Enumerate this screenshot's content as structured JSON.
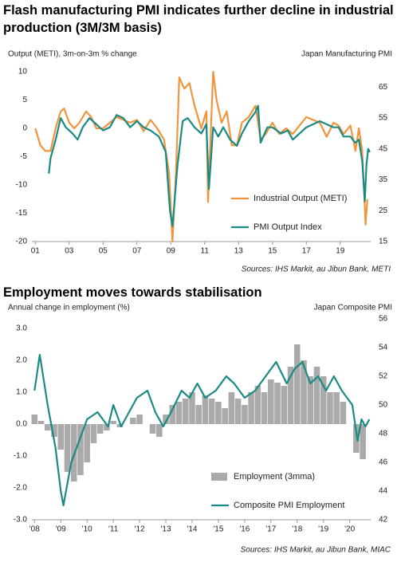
{
  "chart_data": [
    {
      "type": "line",
      "title": "Flash manufacturing PMI indicates further decline in industrial production (3M/3M basis)",
      "y_label": "Output (METI), 3m-on-3m % change",
      "y2_label": "Japan Manufacturing PMI",
      "source": "Sources: IHS Markit, au Jibun Bank, METI",
      "xlim": [
        2000.8,
        2020.8
      ],
      "xticks": [
        {
          "value": 2001,
          "label": "01"
        },
        {
          "value": 2003,
          "label": "03"
        },
        {
          "value": 2005,
          "label": "05"
        },
        {
          "value": 2007,
          "label": "07"
        },
        {
          "value": 2009,
          "label": "09"
        },
        {
          "value": 2011,
          "label": "11"
        },
        {
          "value": 2013,
          "label": "13"
        },
        {
          "value": 2015,
          "label": "15"
        },
        {
          "value": 2017,
          "label": "17"
        },
        {
          "value": 2019,
          "label": "19"
        }
      ],
      "ylim": [
        -20,
        10
      ],
      "yticks": [
        -20,
        -15,
        -10,
        -5,
        0,
        5,
        10
      ],
      "y2lim": [
        15,
        70
      ],
      "y2ticks": [
        15,
        25,
        35,
        45,
        55,
        65
      ],
      "legend": "lower right",
      "series": [
        {
          "name": "Industrial Output (METI)",
          "color": "#f0953c",
          "type": "line",
          "x": [
            2001.0,
            2001.3,
            2001.6,
            2001.9,
            2002.2,
            2002.5,
            2002.7,
            2003.0,
            2003.3,
            2003.6,
            2004.0,
            2004.3,
            2004.6,
            2005.0,
            2005.4,
            2005.8,
            2006.2,
            2006.6,
            2007.0,
            2007.4,
            2007.8,
            2008.2,
            2008.6,
            2008.9,
            2009.1,
            2009.3,
            2009.5,
            2009.8,
            2010.1,
            2010.4,
            2010.8,
            2011.1,
            2011.2,
            2011.5,
            2011.7,
            2012.0,
            2012.3,
            2012.6,
            2012.9,
            2013.2,
            2013.6,
            2014.0,
            2014.3,
            2014.6,
            2015.0,
            2015.4,
            2015.8,
            2016.2,
            2016.6,
            2017.0,
            2017.4,
            2017.8,
            2018.2,
            2018.6,
            2018.9,
            2019.2,
            2019.6,
            2019.9,
            2020.1,
            2020.3,
            2020.5,
            2020.6
          ],
          "values": [
            0,
            -3,
            -4,
            -4,
            0,
            3,
            3.5,
            1,
            0,
            1,
            3,
            2,
            0,
            0,
            1,
            2,
            1.5,
            1,
            1.5,
            -0.5,
            1.5,
            0,
            -2,
            -8,
            -20,
            -8,
            9,
            7,
            8,
            4,
            0,
            3,
            -13,
            10,
            5,
            1,
            3,
            -3,
            -3,
            1,
            2,
            4,
            -2,
            -1,
            1,
            -1,
            0,
            -1,
            0.5,
            2,
            1.5,
            1,
            -1.5,
            1,
            0.5,
            -1,
            0.5,
            -4,
            0,
            -4,
            -17,
            -12.5
          ]
        },
        {
          "name": "PMI Output Index",
          "color": "#1a8a84",
          "type": "line",
          "axis": "y2",
          "x": [
            2001.8,
            2001.9,
            2002.2,
            2002.5,
            2002.8,
            2003.2,
            2003.5,
            2003.8,
            2004.2,
            2004.6,
            2005.0,
            2005.4,
            2005.8,
            2006.2,
            2006.6,
            2007.0,
            2007.4,
            2007.8,
            2008.3,
            2008.7,
            2008.95,
            2009.1,
            2009.4,
            2009.7,
            2010.0,
            2010.4,
            2010.8,
            2011.1,
            2011.25,
            2011.5,
            2011.8,
            2012.1,
            2012.5,
            2012.9,
            2013.2,
            2013.6,
            2014.0,
            2014.15,
            2014.3,
            2014.7,
            2015.0,
            2015.5,
            2015.9,
            2016.2,
            2016.6,
            2017.0,
            2017.4,
            2017.8,
            2018.2,
            2018.6,
            2018.9,
            2019.2,
            2019.6,
            2019.9,
            2020.1,
            2020.3,
            2020.45,
            2020.55,
            2020.65,
            2020.75
          ],
          "values": [
            37,
            42,
            48,
            55,
            52,
            50,
            48,
            52,
            55,
            53,
            51,
            52,
            56,
            55,
            52,
            54,
            52,
            51,
            49,
            44,
            25,
            20,
            40,
            54,
            55,
            52,
            50,
            53,
            32,
            52,
            49,
            52,
            48,
            46,
            50,
            54,
            57,
            59,
            47,
            52,
            52,
            50,
            51,
            48,
            50,
            52,
            53,
            54,
            53,
            52,
            52,
            49,
            49,
            47,
            48,
            41,
            28,
            40,
            45,
            44
          ]
        }
      ]
    },
    {
      "type": "combo",
      "title": "Employment moves towards stabilisation",
      "y_label": "Annual change in employment  (%)",
      "y2_label": "Japan Composite PMI",
      "source": "Sources: IHS Markit, au Jibun Bank, MIAC",
      "xlim": [
        2007.9,
        2020.8
      ],
      "xticks": [
        {
          "value": 2008,
          "label": "'08"
        },
        {
          "value": 2009,
          "label": "'09"
        },
        {
          "value": 2010,
          "label": "'10"
        },
        {
          "value": 2011,
          "label": "'11"
        },
        {
          "value": 2012,
          "label": "'12"
        },
        {
          "value": 2013,
          "label": "'13"
        },
        {
          "value": 2014,
          "label": "'14"
        },
        {
          "value": 2015,
          "label": "'15"
        },
        {
          "value": 2016,
          "label": "'16"
        },
        {
          "value": 2017,
          "label": "'17"
        },
        {
          "value": 2018,
          "label": "'18"
        },
        {
          "value": 2019,
          "label": "'19"
        },
        {
          "value": 2020,
          "label": "'20"
        }
      ],
      "ylim": [
        -3,
        3.3
      ],
      "yticks": [
        {
          "value": -3,
          "label": "-3.0"
        },
        {
          "value": -2,
          "label": "-2.0"
        },
        {
          "value": -1,
          "label": "-1.0"
        },
        {
          "value": 0,
          "label": "0.0"
        },
        {
          "value": 1,
          "label": "1.0"
        },
        {
          "value": 2,
          "label": "2.0"
        },
        {
          "value": 3,
          "label": "3.0"
        }
      ],
      "y2lim": [
        42,
        56
      ],
      "y2ticks": [
        42,
        44,
        46,
        48,
        50,
        52,
        54,
        56
      ],
      "legend": "lower right",
      "series": [
        {
          "name": "Employment (3mma)",
          "color": "#aaaaaa",
          "type": "bar",
          "x": [
            2008.0,
            2008.25,
            2008.5,
            2008.75,
            2009.0,
            2009.25,
            2009.5,
            2009.75,
            2010.0,
            2010.25,
            2010.5,
            2010.75,
            2011.0,
            2011.25,
            2011.5,
            2011.75,
            2012.0,
            2012.25,
            2012.5,
            2012.75,
            2013.0,
            2013.25,
            2013.5,
            2013.75,
            2014.0,
            2014.25,
            2014.5,
            2014.75,
            2015.0,
            2015.25,
            2015.5,
            2015.75,
            2016.0,
            2016.25,
            2016.5,
            2016.75,
            2017.0,
            2017.25,
            2017.5,
            2017.75,
            2018.0,
            2018.25,
            2018.5,
            2018.75,
            2019.0,
            2019.25,
            2019.5,
            2019.75,
            2020.0,
            2020.25,
            2020.5
          ],
          "values": [
            0.3,
            0.1,
            -0.2,
            -0.4,
            -0.8,
            -1.5,
            -1.8,
            -1.6,
            -1.2,
            -0.6,
            -0.3,
            -0.2,
            0.1,
            -0.1,
            0.0,
            0.2,
            0.3,
            0.0,
            -0.3,
            -0.4,
            0.3,
            0.6,
            0.7,
            0.8,
            1.0,
            0.6,
            0.9,
            0.8,
            0.7,
            0.5,
            1.0,
            0.8,
            0.6,
            1.0,
            1.2,
            1.0,
            1.4,
            1.3,
            1.2,
            1.8,
            2.5,
            2.0,
            1.5,
            1.8,
            1.5,
            1.0,
            1.0,
            0.7,
            0.0,
            -0.9,
            -1.1
          ]
        },
        {
          "name": "Composite PMI Employment",
          "color": "#1a8a84",
          "type": "line",
          "axis": "y2",
          "x": [
            2008.0,
            2008.2,
            2008.5,
            2008.8,
            2009.0,
            2009.1,
            2009.4,
            2009.7,
            2010.0,
            2010.4,
            2010.8,
            2011.0,
            2011.3,
            2011.6,
            2011.9,
            2012.3,
            2012.6,
            2012.9,
            2013.2,
            2013.6,
            2013.9,
            2014.2,
            2014.5,
            2014.9,
            2015.3,
            2015.6,
            2016.0,
            2016.4,
            2016.8,
            2017.2,
            2017.6,
            2017.9,
            2018.2,
            2018.5,
            2018.8,
            2019.1,
            2019.4,
            2019.7,
            2019.9,
            2020.1,
            2020.3,
            2020.45,
            2020.6,
            2020.75
          ],
          "values": [
            51,
            53.5,
            50,
            47,
            44,
            43,
            46,
            47.5,
            49,
            49.5,
            48.5,
            50,
            48.5,
            49.5,
            50.5,
            51,
            49.5,
            48.5,
            49.5,
            51,
            50.5,
            51.5,
            50.5,
            51,
            52,
            51.5,
            50.5,
            51,
            52,
            53,
            51.5,
            52.5,
            53,
            51.5,
            52,
            51,
            52,
            51,
            50.5,
            50,
            47.5,
            49,
            48.5,
            49
          ]
        }
      ]
    }
  ]
}
